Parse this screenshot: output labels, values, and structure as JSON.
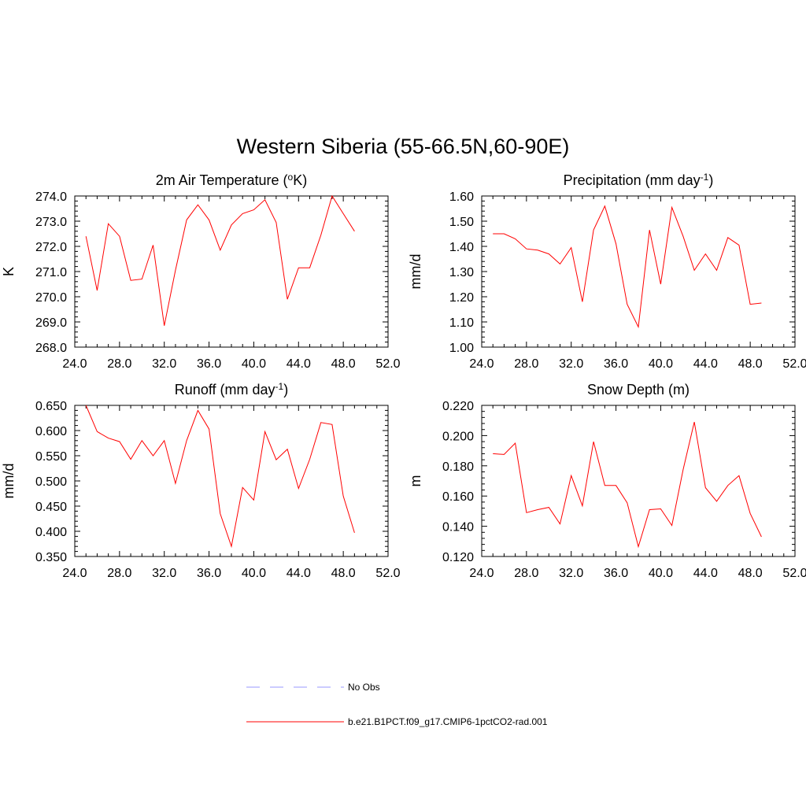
{
  "figure": {
    "title": "Western Siberia (55-66.5N,60-90E)"
  },
  "colors": {
    "model": "#ff0000",
    "obs": "#9999ff",
    "axis": "#000000"
  },
  "legend": {
    "placement": "bottom-center",
    "items": [
      {
        "label": "No Obs",
        "style": "dashed",
        "color": "#9999ff"
      },
      {
        "label": "b.e21.B1PCT.f09_g17.CMIP6-1pctCO2-rad.001",
        "style": "solid",
        "color": "#ff0000"
      }
    ]
  },
  "chart_data": [
    {
      "type": "line",
      "title": "2m Air Temperature (",
      "title_sup1": "o",
      "title_mid": "K)",
      "title_sup2": "",
      "title_end": "",
      "ylabel": "K",
      "xlabel": "",
      "xlim": [
        24,
        52
      ],
      "ylim": [
        268,
        274
      ],
      "xticks": [
        "24.0",
        "28.0",
        "32.0",
        "36.0",
        "40.0",
        "44.0",
        "48.0",
        "52.0"
      ],
      "yticks": [
        "268.0",
        "269.0",
        "270.0",
        "271.0",
        "272.0",
        "273.0",
        "274.0"
      ],
      "grid": false,
      "series": [
        {
          "x": [
            25,
            26,
            27,
            28,
            29,
            30,
            31,
            32,
            33,
            34,
            35,
            36,
            37,
            38,
            39,
            40,
            41,
            42,
            43,
            44,
            45,
            46,
            47,
            48,
            49
          ],
          "values": [
            272.4,
            270.25,
            272.9,
            272.4,
            270.65,
            270.7,
            272.05,
            268.85,
            271.05,
            273.05,
            273.65,
            273.05,
            271.85,
            272.85,
            273.3,
            273.45,
            273.85,
            272.95,
            269.9,
            271.15,
            271.15,
            272.45,
            274.0,
            273.3,
            272.6
          ]
        }
      ]
    },
    {
      "type": "line",
      "title": "Precipitation (mm day",
      "title_sup1": "-1",
      "title_mid": ")",
      "title_sup2": "",
      "title_end": "",
      "ylabel": "mm/d",
      "xlabel": "",
      "xlim": [
        24,
        52
      ],
      "ylim": [
        1.0,
        1.6
      ],
      "xticks": [
        "24.0",
        "28.0",
        "32.0",
        "36.0",
        "40.0",
        "44.0",
        "48.0",
        "52.0"
      ],
      "yticks": [
        "1.00",
        "1.10",
        "1.20",
        "1.30",
        "1.40",
        "1.50",
        "1.60"
      ],
      "grid": false,
      "series": [
        {
          "x": [
            25,
            26,
            27,
            28,
            29,
            30,
            31,
            32,
            33,
            34,
            35,
            36,
            37,
            38,
            39,
            40,
            41,
            42,
            43,
            44,
            45,
            46,
            47,
            48,
            49
          ],
          "values": [
            1.45,
            1.45,
            1.43,
            1.39,
            1.385,
            1.37,
            1.33,
            1.395,
            1.18,
            1.465,
            1.56,
            1.41,
            1.17,
            1.08,
            1.465,
            1.25,
            1.555,
            1.44,
            1.305,
            1.37,
            1.305,
            1.435,
            1.405,
            1.17,
            1.175
          ]
        }
      ]
    },
    {
      "type": "line",
      "title": "Runoff (mm day",
      "title_sup1": "-1",
      "title_mid": ")",
      "title_sup2": "",
      "title_end": "",
      "ylabel": "mm/d",
      "xlabel": "",
      "xlim": [
        24,
        52
      ],
      "ylim": [
        0.35,
        0.65
      ],
      "xticks": [
        "24.0",
        "28.0",
        "32.0",
        "36.0",
        "40.0",
        "44.0",
        "48.0",
        "52.0"
      ],
      "yticks": [
        "0.350",
        "0.400",
        "0.450",
        "0.500",
        "0.550",
        "0.600",
        "0.650"
      ],
      "grid": false,
      "series": [
        {
          "x": [
            25,
            26,
            27,
            28,
            29,
            30,
            31,
            32,
            33,
            34,
            35,
            36,
            37,
            38,
            39,
            40,
            41,
            42,
            43,
            44,
            45,
            46,
            47,
            48,
            49
          ],
          "values": [
            0.65,
            0.598,
            0.585,
            0.578,
            0.543,
            0.58,
            0.55,
            0.58,
            0.495,
            0.58,
            0.64,
            0.603,
            0.435,
            0.37,
            0.487,
            0.462,
            0.598,
            0.542,
            0.563,
            0.485,
            0.543,
            0.616,
            0.612,
            0.47,
            0.397
          ]
        }
      ]
    },
    {
      "type": "line",
      "title": "Snow Depth (m)",
      "title_sup1": "",
      "title_mid": "",
      "title_sup2": "",
      "title_end": "",
      "ylabel": "m",
      "xlabel": "",
      "xlim": [
        24,
        52
      ],
      "ylim": [
        0.12,
        0.22
      ],
      "xticks": [
        "24.0",
        "28.0",
        "32.0",
        "36.0",
        "40.0",
        "44.0",
        "48.0",
        "52.0"
      ],
      "yticks": [
        "0.120",
        "0.140",
        "0.160",
        "0.180",
        "0.200",
        "0.220"
      ],
      "grid": false,
      "series": [
        {
          "x": [
            25,
            26,
            27,
            28,
            29,
            30,
            31,
            32,
            33,
            34,
            35,
            36,
            37,
            38,
            39,
            40,
            41,
            42,
            43,
            44,
            45,
            46,
            47,
            48,
            49
          ],
          "values": [
            0.188,
            0.1875,
            0.195,
            0.149,
            0.151,
            0.1525,
            0.1415,
            0.1735,
            0.1535,
            0.196,
            0.167,
            0.167,
            0.1555,
            0.1265,
            0.151,
            0.1515,
            0.1405,
            0.1775,
            0.209,
            0.1655,
            0.1565,
            0.167,
            0.1735,
            0.1485,
            0.133
          ]
        }
      ]
    }
  ]
}
